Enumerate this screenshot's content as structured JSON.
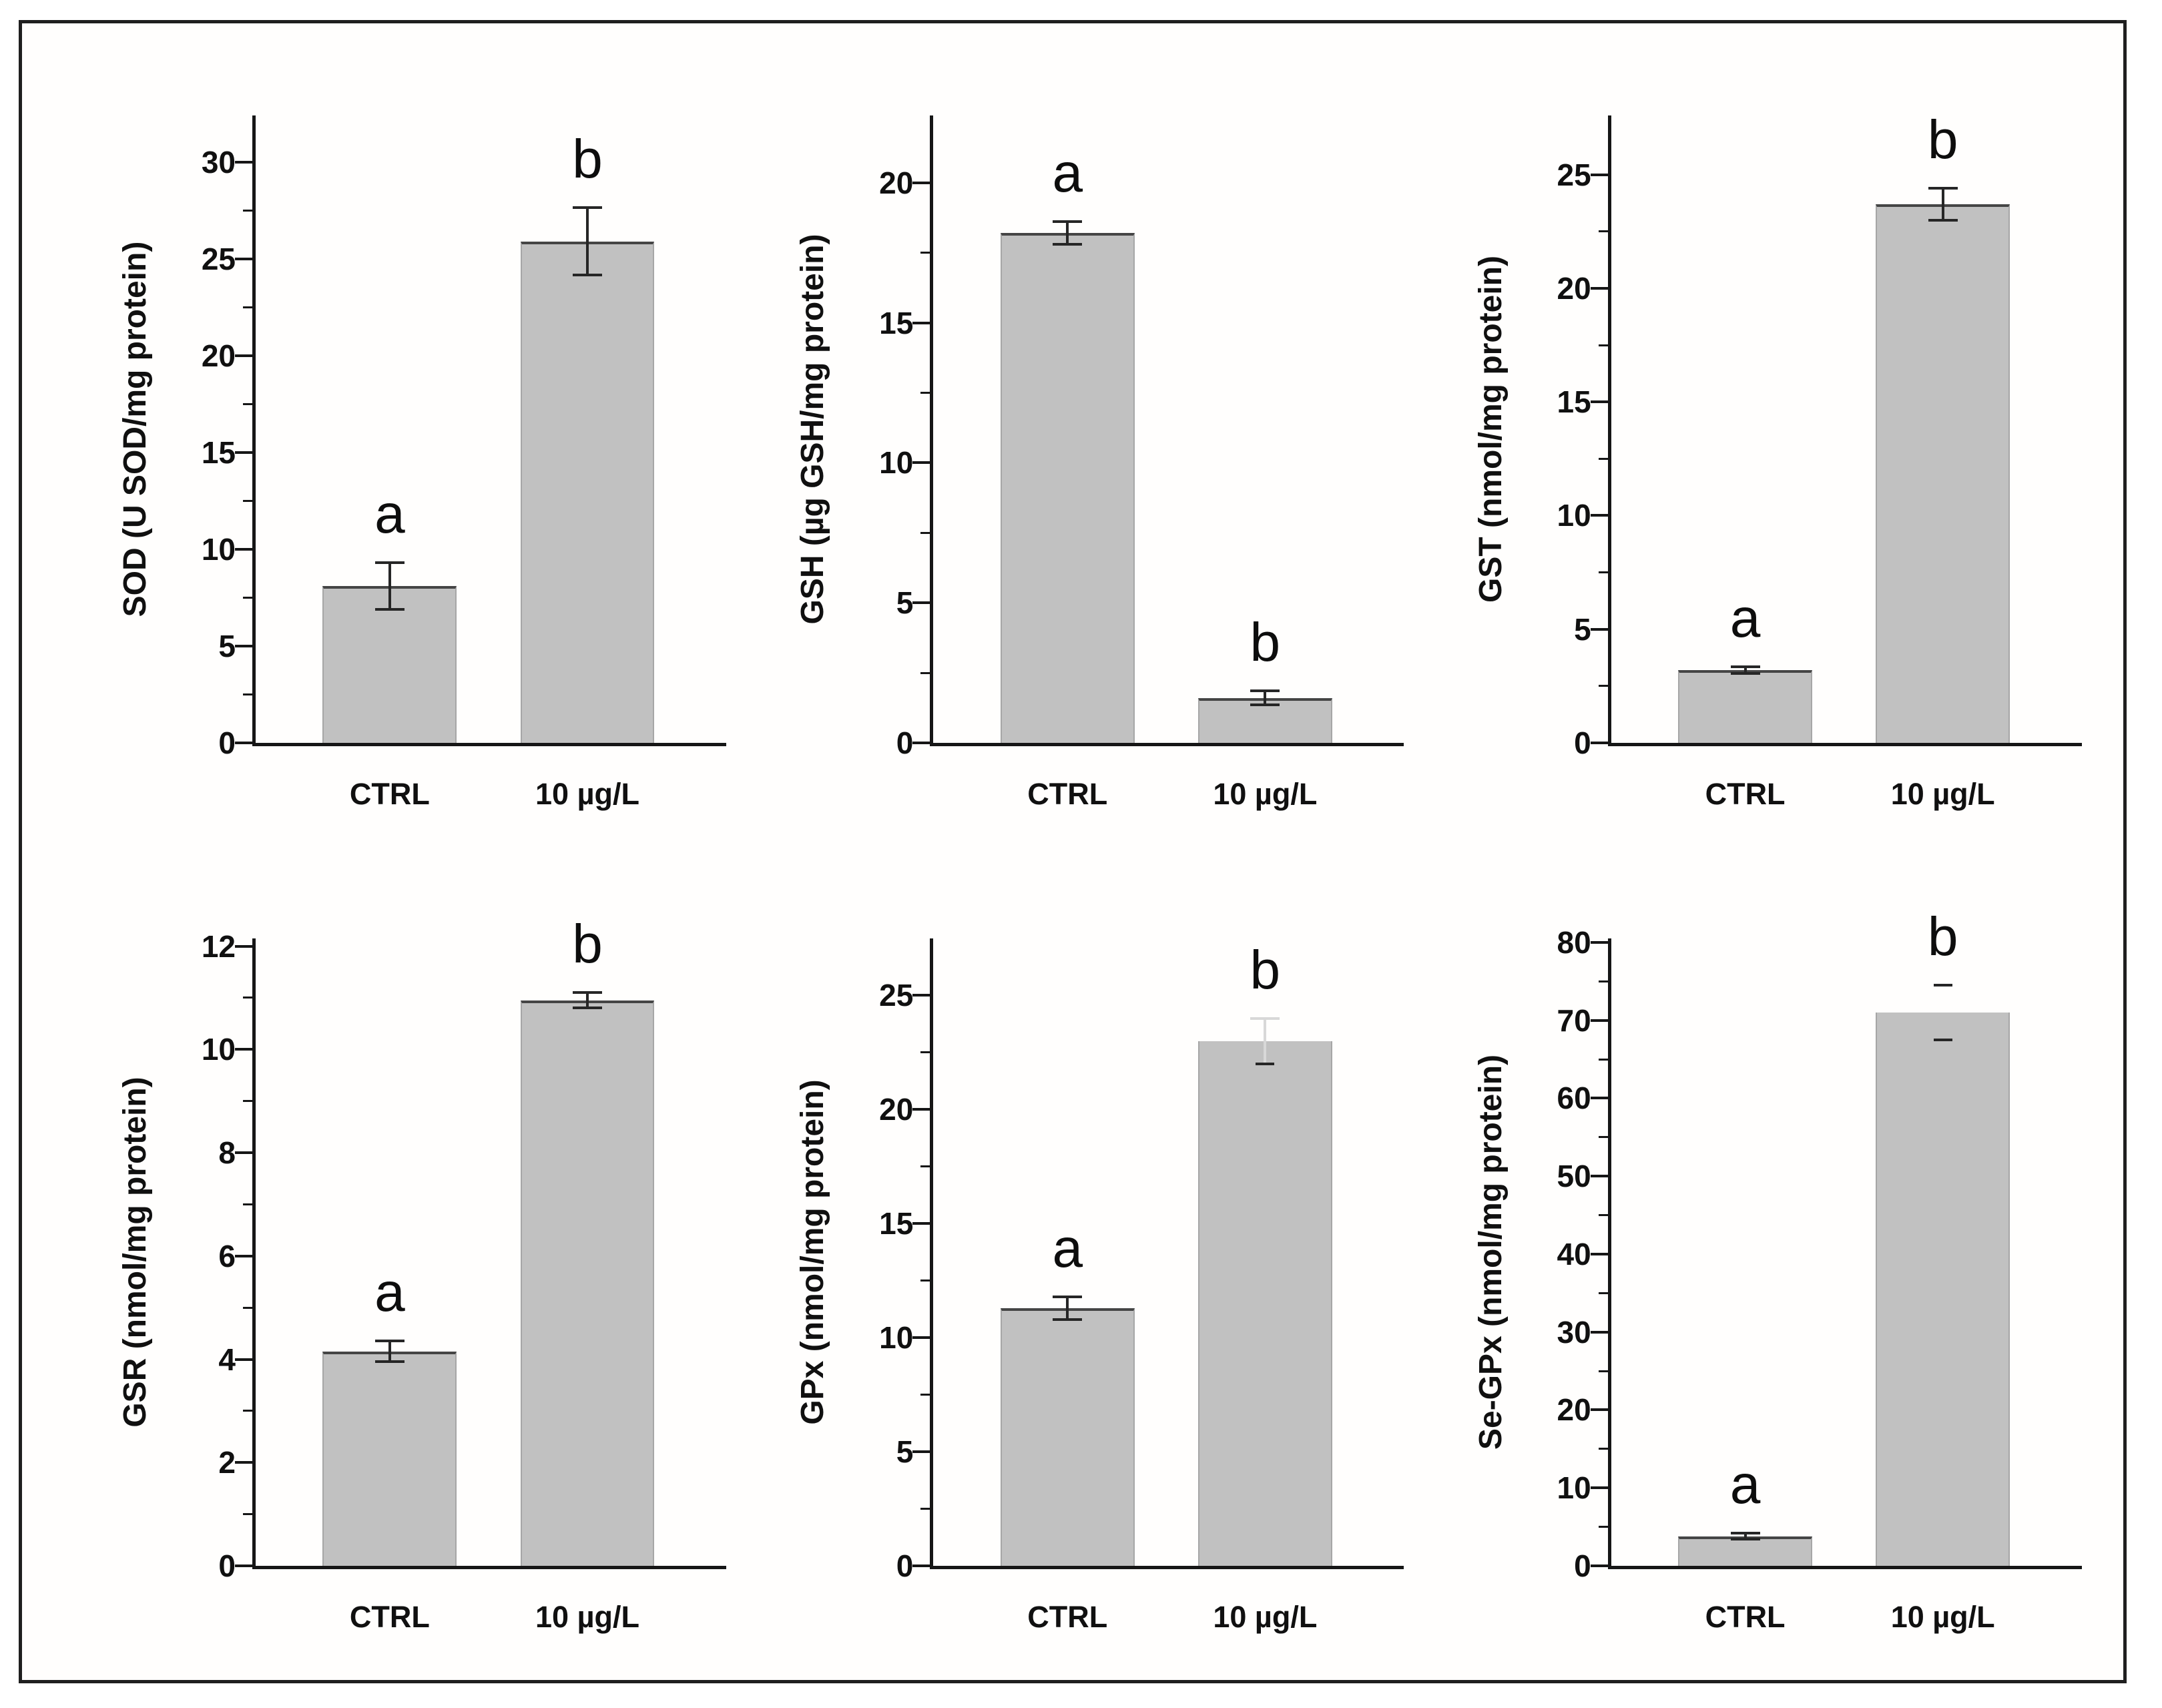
{
  "figure": {
    "layout": "2x3 multi-panel bar figure",
    "panel_count": 6,
    "background_color": "#ffffff",
    "frame_border_color": "#1f1f1f",
    "axis_color": "#161616",
    "text_color": "#101010",
    "bar_fill_color": "#c1c1c1",
    "bar_edge_color": "#a6a6a6",
    "bar_top_edge_color": "#454545",
    "error_bar_color": "#262626",
    "faint_error_color": "#d8d8d8",
    "grid_lines": "off",
    "legend": "none"
  },
  "chart_data": [
    {
      "type": "bar",
      "panel": "top-left",
      "title": "",
      "xlabel": "",
      "ylabel": "SOD (U SOD/mg protein)",
      "categories": [
        "CTRL",
        "10 µg/L"
      ],
      "values": [
        8.1,
        25.9
      ],
      "errors": [
        1.2,
        1.75
      ],
      "sig_letters": [
        "a",
        "b"
      ],
      "yticks": [
        0,
        5,
        10,
        15,
        20,
        25,
        30
      ],
      "ylim": [
        0,
        32.4
      ],
      "minor_tick_step": 2.5,
      "err_styles": [
        "normal",
        "normal"
      ],
      "bar_top_edge": [
        true,
        true
      ]
    },
    {
      "type": "bar",
      "panel": "top-middle",
      "title": "",
      "xlabel": "",
      "ylabel": "GSH (µg GSH/mg protein)",
      "categories": [
        "CTRL",
        "10 µg/L"
      ],
      "values": [
        18.2,
        1.6
      ],
      "errors": [
        0.4,
        0.25
      ],
      "sig_letters": [
        "a",
        "b"
      ],
      "yticks": [
        0,
        5,
        10,
        15,
        20
      ],
      "ylim": [
        0,
        22.4
      ],
      "minor_tick_step": 2.5,
      "err_styles": [
        "normal",
        "normal"
      ],
      "bar_top_edge": [
        true,
        true
      ]
    },
    {
      "type": "bar",
      "panel": "top-right",
      "title": "",
      "xlabel": "",
      "ylabel": "GST (nmol/mg protein)",
      "categories": [
        "CTRL",
        "10 µg/L"
      ],
      "values": [
        3.2,
        23.7
      ],
      "errors": [
        0.15,
        0.7
      ],
      "sig_letters": [
        "a",
        "b"
      ],
      "yticks": [
        0,
        5,
        10,
        15,
        20,
        25
      ],
      "ylim": [
        0,
        27.6
      ],
      "minor_tick_step": 2.5,
      "err_styles": [
        "normal",
        "normal"
      ],
      "bar_top_edge": [
        true,
        true
      ]
    },
    {
      "type": "bar",
      "panel": "bottom-left",
      "title": "",
      "xlabel": "",
      "ylabel": "GSR (nmol/mg protein)",
      "categories": [
        "CTRL",
        "10 µg/L"
      ],
      "values": [
        4.15,
        10.95
      ],
      "errors": [
        0.2,
        0.15
      ],
      "sig_letters": [
        "a",
        "b"
      ],
      "yticks": [
        0,
        2,
        4,
        6,
        8,
        10,
        12
      ],
      "ylim": [
        0,
        12.15
      ],
      "minor_tick_step": 1,
      "err_styles": [
        "normal",
        "normal"
      ],
      "bar_top_edge": [
        true,
        true
      ]
    },
    {
      "type": "bar",
      "panel": "bottom-middle",
      "title": "",
      "xlabel": "",
      "ylabel": "GPx (nmol/mg protein)",
      "categories": [
        "CTRL",
        "10 µg/L"
      ],
      "values": [
        11.3,
        23.0
      ],
      "errors": [
        0.5,
        1.0
      ],
      "sig_letters": [
        "a",
        "b"
      ],
      "yticks": [
        0,
        5,
        10,
        15,
        20,
        25
      ],
      "ylim": [
        0,
        27.5
      ],
      "minor_tick_step": 2.5,
      "err_styles": [
        "normal",
        "faint-upper"
      ],
      "bar_top_edge": [
        true,
        false
      ]
    },
    {
      "type": "bar",
      "panel": "bottom-right",
      "title": "",
      "xlabel": "",
      "ylabel": "Se-GPx (nmol/mg protein)",
      "categories": [
        "CTRL",
        "10 µg/L"
      ],
      "values": [
        3.8,
        71.0
      ],
      "errors": [
        0.4,
        3.5
      ],
      "sig_letters": [
        "a",
        "b"
      ],
      "yticks": [
        0,
        10,
        20,
        30,
        40,
        50,
        60,
        70,
        80
      ],
      "ylim": [
        0,
        80.5
      ],
      "minor_tick_step": 5,
      "err_styles": [
        "normal",
        "caps-only"
      ],
      "bar_top_edge": [
        true,
        false
      ]
    }
  ]
}
